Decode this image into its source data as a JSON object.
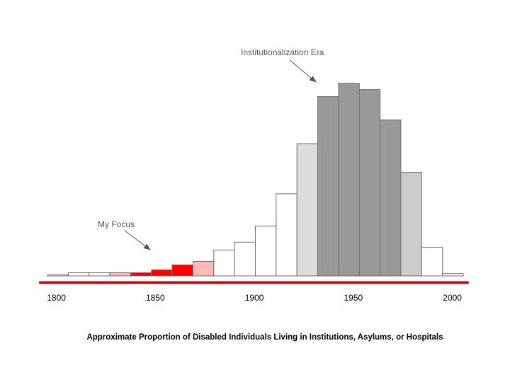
{
  "chart_data": {
    "type": "bar",
    "title": "Approximate Proportion of Disabled Individuals Living in Institutions, Asylums, or Hospitals",
    "xlabel": "",
    "ylabel": "",
    "xlim": [
      1795,
      2005
    ],
    "ylim": [
      0,
      100
    ],
    "bin_width": 10.5,
    "bins": [
      {
        "start": 1795.5,
        "value": 0.5,
        "fill": "#ffffff"
      },
      {
        "start": 1806.0,
        "value": 1.6,
        "fill": "#ffffff"
      },
      {
        "start": 1816.5,
        "value": 1.6,
        "fill": "#ffffff"
      },
      {
        "start": 1827.0,
        "value": 1.6,
        "fill": "#ffbbbb"
      },
      {
        "start": 1837.5,
        "value": 1.6,
        "fill": "#e8000b"
      },
      {
        "start": 1848.0,
        "value": 3.1,
        "fill": "#ff0000"
      },
      {
        "start": 1858.5,
        "value": 5.6,
        "fill": "#ff0000"
      },
      {
        "start": 1869.0,
        "value": 7.4,
        "fill": "#ffbbbb"
      },
      {
        "start": 1879.5,
        "value": 13.2,
        "fill": "#ffffff"
      },
      {
        "start": 1890.0,
        "value": 17.2,
        "fill": "#ffffff"
      },
      {
        "start": 1900.5,
        "value": 25.4,
        "fill": "#ffffff"
      },
      {
        "start": 1911.0,
        "value": 41.9,
        "fill": "#ffffff"
      },
      {
        "start": 1921.5,
        "value": 67.5,
        "fill": "#dcdcdc"
      },
      {
        "start": 1932.0,
        "value": 91.5,
        "fill": "#999999"
      },
      {
        "start": 1942.5,
        "value": 98.3,
        "fill": "#999999"
      },
      {
        "start": 1953.0,
        "value": 95.1,
        "fill": "#999999"
      },
      {
        "start": 1963.5,
        "value": 79.6,
        "fill": "#999999"
      },
      {
        "start": 1974.0,
        "value": 52.9,
        "fill": "#cccccc"
      },
      {
        "start": 1984.5,
        "value": 14.6,
        "fill": "#ffffff"
      },
      {
        "start": 1995.0,
        "value": 1.2,
        "fill": "#ffffff"
      }
    ],
    "ticks": [
      {
        "value": 1800,
        "label": "1800"
      },
      {
        "value": 1850,
        "label": "1850"
      },
      {
        "value": 1900,
        "label": "1900"
      },
      {
        "value": 1950,
        "label": "1950"
      },
      {
        "value": 2000,
        "label": "2000"
      }
    ],
    "annotations": [
      {
        "text": "My Focus",
        "x": 1845,
        "y": 12
      },
      {
        "text": "Institutionalization Era",
        "x": 1928,
        "y": 100
      }
    ],
    "colors": {
      "axis": "#b5121b",
      "bar_stroke": "#6e6e6e",
      "annotation_text": "#555555",
      "arrow": "#555555"
    }
  }
}
